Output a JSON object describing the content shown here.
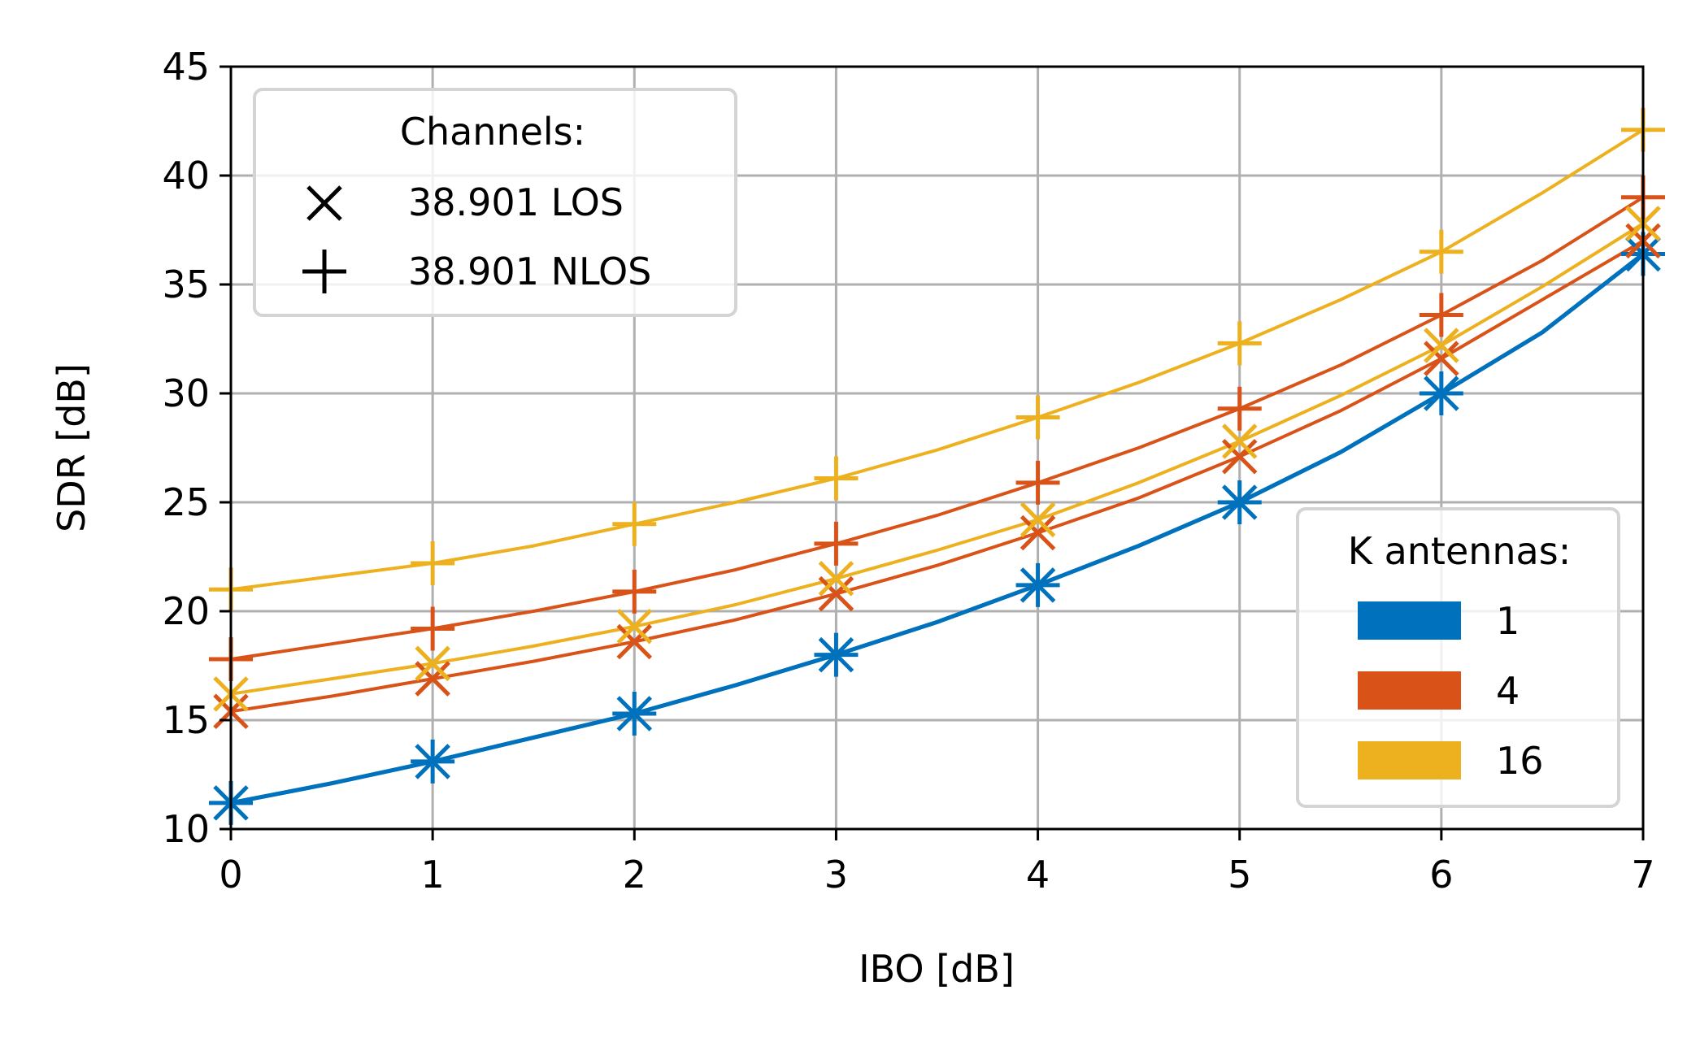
{
  "chart_data": {
    "type": "line",
    "xlabel": "IBO [dB]",
    "ylabel": "SDR [dB]",
    "xlim": [
      0,
      7
    ],
    "ylim": [
      10,
      45
    ],
    "xticks": [
      "0",
      "1",
      "2",
      "3",
      "4",
      "5",
      "6",
      "7"
    ],
    "yticks": [
      "10",
      "15",
      "20",
      "25",
      "30",
      "35",
      "40",
      "45"
    ],
    "grid": true,
    "x": [
      0,
      0.5,
      1,
      1.5,
      2,
      2.5,
      3,
      3.5,
      4,
      4.5,
      5,
      5.5,
      6,
      6.5,
      7
    ],
    "marker_x": [
      0,
      1,
      2,
      3,
      4,
      5,
      6,
      7
    ],
    "series": [
      {
        "antennas": "1",
        "channel": "38.901 LOS",
        "marker": "x",
        "color": "#0072BD",
        "values": [
          11.2,
          12.1,
          13.1,
          14.2,
          15.3,
          16.6,
          18.0,
          19.5,
          21.2,
          23.0,
          25.0,
          27.3,
          30.0,
          32.8,
          36.4
        ]
      },
      {
        "antennas": "1",
        "channel": "38.901 NLOS",
        "marker": "+",
        "color": "#0072BD",
        "values": [
          11.2,
          12.1,
          13.1,
          14.2,
          15.3,
          16.6,
          18.0,
          19.5,
          21.2,
          23.0,
          25.0,
          27.3,
          30.0,
          32.8,
          36.4
        ]
      },
      {
        "antennas": "4",
        "channel": "38.901 LOS",
        "marker": "x",
        "color": "#D95319",
        "values": [
          15.4,
          16.1,
          16.9,
          17.7,
          18.6,
          19.6,
          20.8,
          22.1,
          23.6,
          25.2,
          27.1,
          29.2,
          31.6,
          34.3,
          37.0
        ]
      },
      {
        "antennas": "4",
        "channel": "38.901 NLOS",
        "marker": "+",
        "color": "#D95319",
        "values": [
          17.8,
          18.5,
          19.2,
          20.0,
          20.9,
          21.9,
          23.1,
          24.4,
          25.9,
          27.5,
          29.3,
          31.3,
          33.6,
          36.1,
          39.0
        ]
      },
      {
        "antennas": "16",
        "channel": "38.901 LOS",
        "marker": "x",
        "color": "#EDB120",
        "values": [
          16.2,
          16.9,
          17.6,
          18.4,
          19.3,
          20.3,
          21.5,
          22.8,
          24.2,
          25.9,
          27.8,
          29.9,
          32.2,
          34.9,
          37.8
        ]
      },
      {
        "antennas": "16",
        "channel": "38.901 NLOS",
        "marker": "+",
        "color": "#EDB120",
        "values": [
          21.0,
          21.6,
          22.2,
          23.0,
          24.0,
          25.0,
          26.1,
          27.4,
          28.9,
          30.5,
          32.3,
          34.3,
          36.5,
          39.2,
          42.1
        ]
      }
    ],
    "legend_channels": {
      "title": "Channels:",
      "placement": "top-left",
      "entries": [
        {
          "marker": "x",
          "label": "38.901 LOS"
        },
        {
          "marker": "+",
          "label": "38.901 NLOS"
        }
      ]
    },
    "legend_antennas": {
      "title": "K antennas:",
      "placement": "lower-right",
      "entries": [
        {
          "label": "1",
          "color": "#0072BD"
        },
        {
          "label": "4",
          "color": "#D95319"
        },
        {
          "label": "16",
          "color": "#EDB120"
        }
      ]
    }
  }
}
